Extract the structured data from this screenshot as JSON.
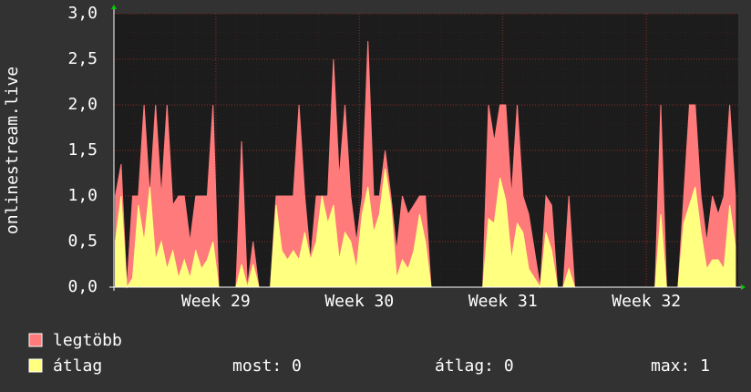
{
  "chart_data": {
    "type": "area",
    "y_label": "onlinestream.live",
    "x": [
      28.3,
      28.34,
      28.38,
      28.42,
      28.46,
      28.5,
      28.54,
      28.58,
      28.62,
      28.66,
      28.7,
      28.74,
      28.78,
      28.82,
      28.86,
      28.9,
      28.94,
      28.98,
      29.02,
      29.06,
      29.1,
      29.14,
      29.18,
      29.22,
      29.26,
      29.3,
      29.34,
      29.38,
      29.42,
      29.46,
      29.5,
      29.54,
      29.58,
      29.62,
      29.66,
      29.7,
      29.74,
      29.78,
      29.82,
      29.86,
      29.9,
      29.94,
      29.98,
      30.02,
      30.06,
      30.1,
      30.14,
      30.18,
      30.22,
      30.26,
      30.3,
      30.34,
      30.38,
      30.42,
      30.46,
      30.5,
      30.54,
      30.58,
      30.62,
      30.66,
      30.7,
      30.74,
      30.78,
      30.82,
      30.86,
      30.9,
      30.94,
      30.98,
      31.02,
      31.06,
      31.1,
      31.14,
      31.18,
      31.22,
      31.26,
      31.3,
      31.34,
      31.38,
      31.42,
      31.46,
      31.5,
      31.54,
      31.58,
      31.62,
      31.66,
      31.7,
      31.74,
      31.78,
      31.82,
      31.86,
      31.9,
      31.94,
      31.98,
      32.02,
      32.06,
      32.1,
      32.14,
      32.18,
      32.22,
      32.26,
      32.3,
      32.34,
      32.38,
      32.42,
      32.46,
      32.5,
      32.54,
      32.58,
      32.62
    ],
    "series": [
      {
        "name": "legtöbb",
        "color": "#ff7a7a",
        "values": [
          1.0,
          1.35,
          0,
          1.0,
          1.0,
          2.0,
          1.0,
          2.0,
          1.0,
          2.0,
          0.9,
          1.0,
          1.0,
          0.5,
          1.0,
          1.0,
          1.0,
          2.0,
          0,
          0,
          0,
          0,
          1.6,
          0,
          0.5,
          0,
          0,
          0,
          1.0,
          1.0,
          1.0,
          1.0,
          2.0,
          1.0,
          0.3,
          1.0,
          1.0,
          1.0,
          2.5,
          1.2,
          2.0,
          1.0,
          0.5,
          1.0,
          2.7,
          1.0,
          1.0,
          1.5,
          1.0,
          0.4,
          1.0,
          0.8,
          0.9,
          1.0,
          1.0,
          0,
          0,
          0,
          0,
          0,
          0,
          0,
          0,
          0,
          0,
          2.0,
          1.6,
          2.0,
          2.0,
          1.0,
          2.0,
          1.0,
          0.8,
          0.4,
          0,
          1.0,
          0.9,
          0,
          0,
          1.0,
          0,
          0,
          0,
          0,
          0,
          0,
          0,
          0,
          0,
          0,
          0,
          0,
          0,
          0,
          0,
          2.0,
          0,
          0,
          0,
          1.0,
          2.0,
          2.0,
          1.0,
          0.5,
          1.0,
          0.8,
          1.0,
          2.0,
          1.0
        ]
      },
      {
        "name": "átlag",
        "color": "#ffff80",
        "values": [
          0.5,
          1.0,
          0,
          0.1,
          0.9,
          0.5,
          1.1,
          0.3,
          0.5,
          0.2,
          0.4,
          0.1,
          0.3,
          0.1,
          0.4,
          0.2,
          0.3,
          0.5,
          0,
          0,
          0,
          0,
          0.25,
          0,
          0.25,
          0,
          0,
          0,
          0.9,
          0.4,
          0.3,
          0.4,
          0.3,
          0.6,
          0.3,
          0.5,
          1.0,
          0.7,
          0.9,
          0.3,
          0.6,
          0.5,
          0.2,
          0.8,
          1.1,
          0.6,
          0.8,
          1.3,
          0.9,
          0.1,
          0.3,
          0.2,
          0.4,
          0.8,
          0.5,
          0,
          0,
          0,
          0,
          0,
          0,
          0,
          0,
          0,
          0,
          0.75,
          0.7,
          1.2,
          0.95,
          0.3,
          0.7,
          0.6,
          0.2,
          0.1,
          0,
          0.6,
          0.4,
          0,
          0,
          0.2,
          0,
          0,
          0,
          0,
          0,
          0,
          0,
          0,
          0,
          0,
          0,
          0,
          0,
          0,
          0,
          0.8,
          0,
          0,
          0,
          0.7,
          0.9,
          1.1,
          0.6,
          0.2,
          0.3,
          0.3,
          0.2,
          0.9,
          0.45
        ]
      }
    ],
    "xlim": [
      28.29,
      32.64
    ],
    "xticks": [
      {
        "value": 29,
        "label": "Week 29"
      },
      {
        "value": 30,
        "label": "Week 30"
      },
      {
        "value": 31,
        "label": "Week 31"
      },
      {
        "value": 32,
        "label": "Week 32"
      }
    ],
    "ylim": [
      0,
      3
    ],
    "yticks": [
      {
        "value": 0,
        "label": "0,0"
      },
      {
        "value": 0.5,
        "label": "0,5"
      },
      {
        "value": 1,
        "label": "1,0"
      },
      {
        "value": 1.5,
        "label": "1,5"
      },
      {
        "value": 2,
        "label": "2,0"
      },
      {
        "value": 2.5,
        "label": "2,5"
      },
      {
        "value": 3,
        "label": "3,0"
      }
    ],
    "grid": true,
    "stats": [
      "most: 0",
      "átlag: 0",
      "max: 1"
    ]
  }
}
